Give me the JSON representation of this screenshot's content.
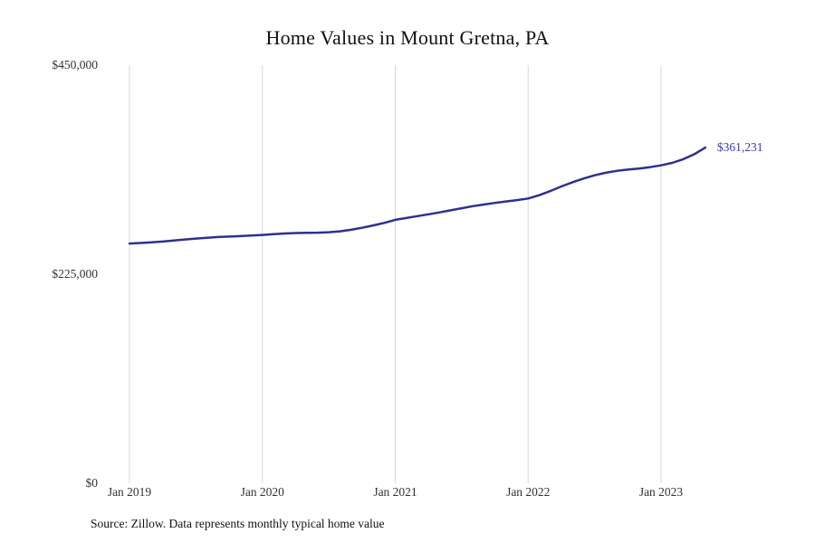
{
  "chart_data": {
    "type": "line",
    "title": "Home Values in Mount Gretna, PA",
    "source": "Source: Zillow. Data represents monthly typical home value",
    "end_label": "$361,231",
    "ylim": [
      0,
      450000
    ],
    "y_ticks": [
      450000,
      225000,
      0
    ],
    "y_tick_labels": [
      "$450,000",
      "$225,000",
      "$0"
    ],
    "x_tick_labels": [
      "Jan 2019",
      "Jan 2020",
      "Jan 2021",
      "Jan 2022",
      "Jan 2023"
    ],
    "legend": "none",
    "grid": "vertical-only",
    "months": [
      "Jan 2019",
      "Feb 2019",
      "Mar 2019",
      "Apr 2019",
      "May 2019",
      "Jun 2019",
      "Jul 2019",
      "Aug 2019",
      "Sep 2019",
      "Oct 2019",
      "Nov 2019",
      "Dec 2019",
      "Jan 2020",
      "Feb 2020",
      "Mar 2020",
      "Apr 2020",
      "May 2020",
      "Jun 2020",
      "Jul 2020",
      "Aug 2020",
      "Sep 2020",
      "Oct 2020",
      "Nov 2020",
      "Dec 2020",
      "Jan 2021",
      "Feb 2021",
      "Mar 2021",
      "Apr 2021",
      "May 2021",
      "Jun 2021",
      "Jul 2021",
      "Aug 2021",
      "Sep 2021",
      "Oct 2021",
      "Nov 2021",
      "Dec 2021",
      "Jan 2022",
      "Feb 2022",
      "Mar 2022",
      "Apr 2022",
      "May 2022",
      "Jun 2022",
      "Jul 2022",
      "Aug 2022",
      "Sep 2022",
      "Oct 2022",
      "Nov 2022",
      "Dec 2022",
      "Jan 2023",
      "Feb 2023",
      "Mar 2023",
      "Apr 2023",
      "May 2023"
    ],
    "values": [
      258000,
      258600,
      259300,
      260200,
      261300,
      262400,
      263400,
      264300,
      265000,
      265500,
      266000,
      266600,
      267300,
      268100,
      268800,
      269300,
      269600,
      269700,
      270200,
      271200,
      272800,
      275000,
      277500,
      280200,
      283500,
      285500,
      287500,
      289500,
      291500,
      293800,
      296000,
      298200,
      300000,
      301800,
      303300,
      304800,
      306500,
      310000,
      314500,
      319500,
      324000,
      328000,
      331500,
      334200,
      336200,
      337600,
      338800,
      340200,
      342200,
      344800,
      348800,
      354200,
      361231
    ],
    "colors": {
      "line": "#2f2f8f",
      "label": "#3b3ba6",
      "grid": "#d8d8d8",
      "text": "#333333",
      "title_text": "#111111"
    }
  }
}
